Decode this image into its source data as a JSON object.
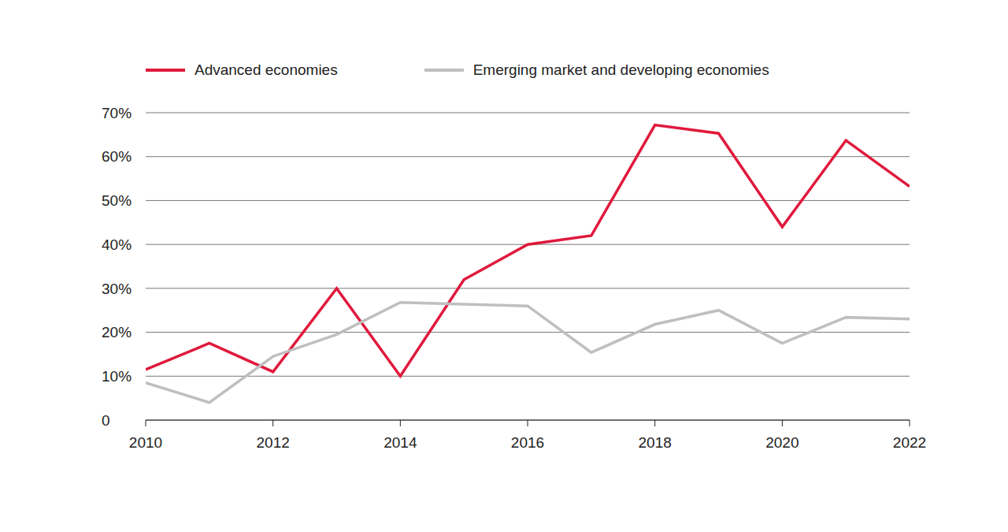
{
  "chart_data": {
    "type": "line",
    "x": [
      2010,
      2011,
      2012,
      2013,
      2014,
      2015,
      2016,
      2017,
      2018,
      2019,
      2020,
      2021,
      2022
    ],
    "series": [
      {
        "name": "Advanced economies",
        "color": "#e0193c",
        "values": [
          11.5,
          17.5,
          11,
          30,
          10,
          32,
          40,
          42,
          67.2,
          65.3,
          44,
          63.7,
          53.2
        ]
      },
      {
        "name": "Emerging market and developing economies",
        "color": "#bfbfbf",
        "values": [
          8.5,
          4,
          14.5,
          19.5,
          26.8,
          26.4,
          26,
          15.4,
          21.8,
          25,
          17.5,
          23.4,
          23
        ]
      }
    ],
    "xlim": [
      2010,
      2022
    ],
    "xticks": [
      2010,
      2012,
      2014,
      2016,
      2018,
      2020,
      2022
    ],
    "ylim": [
      0,
      70
    ],
    "yticks": [
      0,
      {
        "value": 10,
        "label": "10%"
      },
      {
        "value": 20,
        "label": "20%"
      },
      {
        "value": 30,
        "label": "30%"
      },
      {
        "value": 40,
        "label": "40%"
      },
      {
        "value": 50,
        "label": "50%"
      },
      {
        "value": 60,
        "label": "60%"
      },
      {
        "value": 70,
        "label": "70%"
      }
    ],
    "grid": true,
    "legend": "top-left"
  }
}
